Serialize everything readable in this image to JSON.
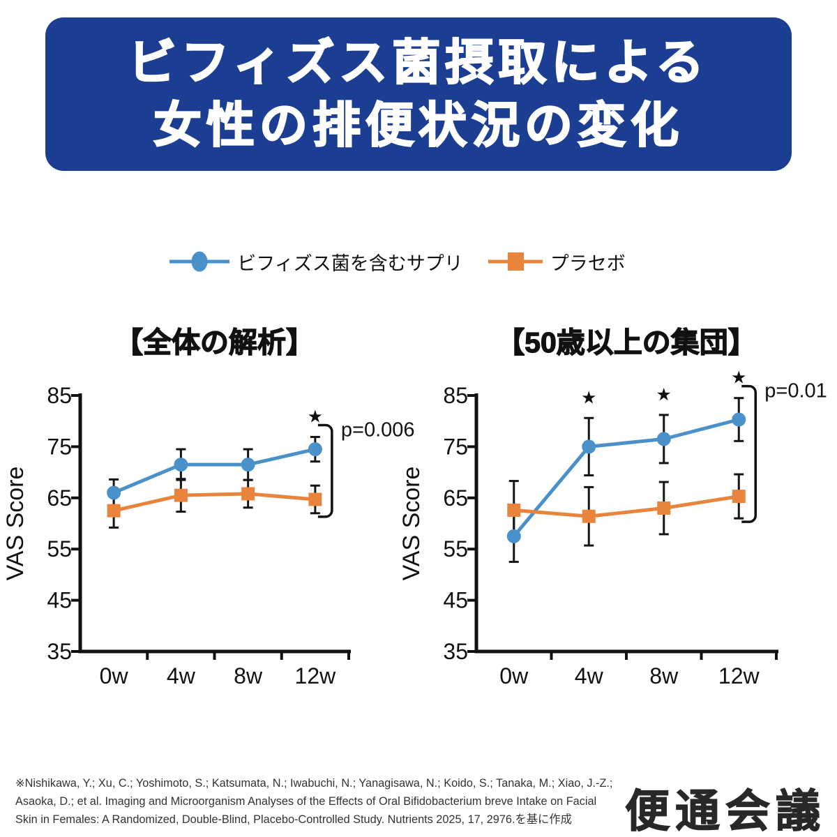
{
  "header": {
    "title_line1": "ビフィズス菌摂取による",
    "title_line2": "女性の排便状況の変化",
    "bg_color": "#1c3e92",
    "text_color": "#ffffff"
  },
  "legend": {
    "items": [
      {
        "label": "ビフィズス菌を含むサプリ",
        "color": "#4a90c9",
        "marker": "circle"
      },
      {
        "label": "プラセボ",
        "color": "#e8843b",
        "marker": "square"
      }
    ]
  },
  "chart_data": [
    {
      "type": "line",
      "title": "【全体の解析】",
      "ylabel": "VAS Score",
      "x_categories": [
        "0w",
        "4w",
        "8w",
        "12w"
      ],
      "ylim": [
        35,
        85
      ],
      "yticks": [
        85,
        75,
        65,
        55,
        45,
        35
      ],
      "series": [
        {
          "name": "ビフィズス菌を含むサプリ",
          "color": "#4a90c9",
          "marker": "circle",
          "values": [
            66,
            71.5,
            71.5,
            74.5
          ],
          "err": [
            2.6,
            3.0,
            3.0,
            2.4
          ]
        },
        {
          "name": "プラセボ",
          "color": "#e8843b",
          "marker": "square",
          "values": [
            62.5,
            65.5,
            65.8,
            64.7
          ],
          "err": [
            3.3,
            3.2,
            2.7,
            2.7
          ]
        }
      ],
      "annotations": {
        "asterisk_indices": [
          3
        ],
        "p_label": "p=0.006",
        "star": "★"
      }
    },
    {
      "type": "line",
      "title": "【50歳以上の集団】",
      "ylabel": "VAS Score",
      "x_categories": [
        "0w",
        "4w",
        "8w",
        "12w"
      ],
      "ylim": [
        35,
        85
      ],
      "yticks": [
        85,
        75,
        65,
        55,
        45,
        35
      ],
      "series": [
        {
          "name": "ビフィズス菌を含むサプリ",
          "color": "#4a90c9",
          "marker": "circle",
          "values": [
            57.5,
            75,
            76.5,
            80.3
          ],
          "err": [
            5.0,
            5.6,
            4.7,
            4.2
          ]
        },
        {
          "name": "プラセボ",
          "color": "#e8843b",
          "marker": "square",
          "values": [
            62.6,
            61.4,
            63,
            65.3
          ],
          "err": [
            5.7,
            5.7,
            5.1,
            4.3
          ]
        }
      ],
      "annotations": {
        "asterisk_indices": [
          1,
          2,
          3
        ],
        "p_label": "p=0.01",
        "star": "★"
      }
    }
  ],
  "footer": {
    "line1": "※Nishikawa, Y.; Xu, C.; Yoshimoto, S.; Katsumata, N.; Iwabuchi, N.; Yanagisawa, N.; Koido, S.; Tanaka, M.; Xiao, J.-Z.;",
    "line2": "Asaoka, D.; et al. Imaging and Microorganism Analyses of the Effects of Oral Bifidobacterium breve Intake on Facial",
    "line3": "Skin in Females: A Randomized, Double-Blind, Placebo-Controlled Study. Nutrients 2025, 17, 2976.を基に作成"
  },
  "logo": {
    "text": "便通会議"
  }
}
